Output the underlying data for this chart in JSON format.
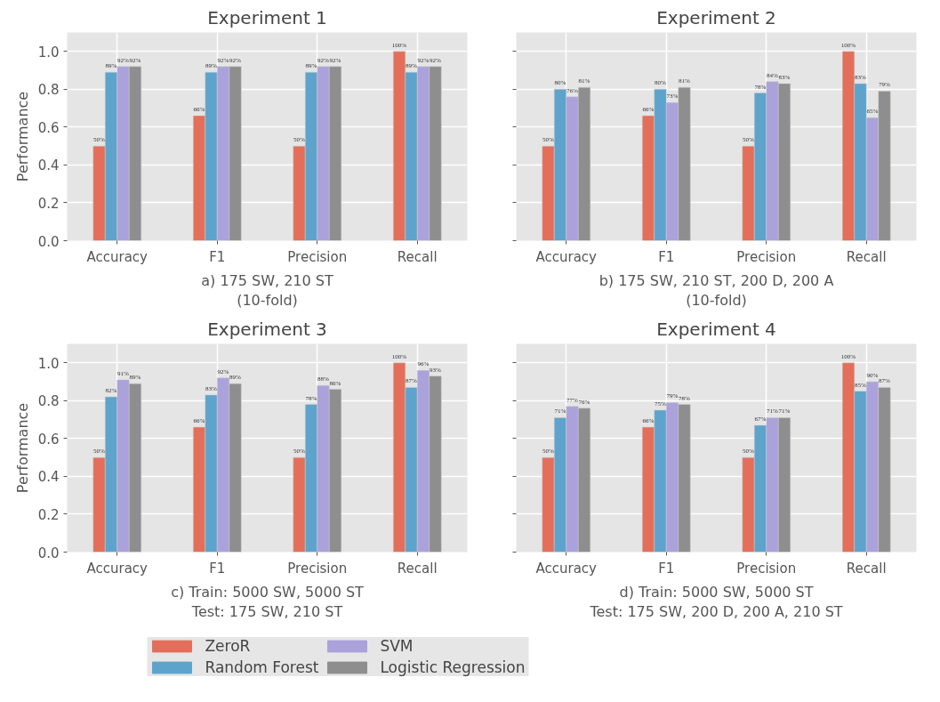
{
  "chart_data": [
    {
      "type": "bar",
      "title": "Experiment 1",
      "xlabel": "a) 175 SW, 210 ST\n(10-fold)",
      "ylabel": "Performance",
      "categories": [
        "Accuracy",
        "F1",
        "Precision",
        "Recall"
      ],
      "ylim": [
        0,
        1.1
      ],
      "yticks": [
        {
          "value": 0,
          "label": "0.0"
        },
        {
          "value": 0.2,
          "label": "0.2"
        },
        {
          "value": 0.4,
          "label": "0.4"
        },
        {
          "value": 0.6,
          "label": "0.6"
        },
        {
          "value": 0.8,
          "label": "0.8"
        },
        {
          "value": 1,
          "label": "1.0"
        }
      ],
      "grid": true,
      "series": [
        {
          "color": "#e36f5a",
          "values": [
            0.5,
            0.66,
            0.5,
            1.0
          ],
          "value_labels": [
            "50%",
            "66%",
            "50%",
            "100%"
          ]
        },
        {
          "color": "#5ea3cb",
          "values": [
            0.89,
            0.89,
            0.89,
            0.89
          ],
          "value_labels": [
            "89%",
            "89%",
            "89%",
            "89%"
          ]
        },
        {
          "color": "#aba2db",
          "values": [
            0.92,
            0.92,
            0.92,
            0.92
          ],
          "value_labels": [
            "92%",
            "92%",
            "92%",
            "92%"
          ]
        },
        {
          "color": "#8e8e8e",
          "values": [
            0.92,
            0.92,
            0.92,
            0.92
          ],
          "value_labels": [
            "92%",
            "92%",
            "92%",
            "92%"
          ]
        }
      ]
    },
    {
      "type": "bar",
      "title": "Experiment 2",
      "xlabel": "b) 175 SW, 210 ST, 200 D, 200 A\n(10-fold)",
      "categories": [
        "Accuracy",
        "F1",
        "Precision",
        "Recall"
      ],
      "ylim": [
        0,
        1.1
      ],
      "yticks": [
        0,
        0.2,
        0.4,
        0.6,
        0.8,
        1
      ],
      "grid": true,
      "tick_labels": "x",
      "series": [
        {
          "color": "#e36f5a",
          "values": [
            0.5,
            0.66,
            0.5,
            1.0
          ],
          "value_labels": [
            "50%",
            "66%",
            "50%",
            "100%"
          ]
        },
        {
          "color": "#5ea3cb",
          "values": [
            0.8,
            0.8,
            0.78,
            0.83
          ],
          "value_labels": [
            "80%",
            "80%",
            "78%",
            "83%"
          ]
        },
        {
          "color": "#aba2db",
          "values": [
            0.76,
            0.73,
            0.84,
            0.65
          ],
          "value_labels": [
            "76%",
            "73%",
            "84%",
            "65%"
          ]
        },
        {
          "color": "#8e8e8e",
          "values": [
            0.81,
            0.81,
            0.83,
            0.79
          ],
          "value_labels": [
            "81%",
            "81%",
            "83%",
            "79%"
          ]
        }
      ]
    },
    {
      "type": "bar",
      "title": "Experiment 3",
      "xlabel": "c) Train: 5000 SW, 5000 ST\nTest: 175 SW, 210 ST",
      "ylabel": "Performance",
      "categories": [
        "Accuracy",
        "F1",
        "Precision",
        "Recall"
      ],
      "ylim": [
        0,
        1.1
      ],
      "yticks": [
        {
          "value": 0,
          "label": "0.0"
        },
        {
          "value": 0.2,
          "label": "0.2"
        },
        {
          "value": 0.4,
          "label": "0.4"
        },
        {
          "value": 0.6,
          "label": "0.6"
        },
        {
          "value": 0.8,
          "label": "0.8"
        },
        {
          "value": 1,
          "label": "1.0"
        }
      ],
      "grid": true,
      "series": [
        {
          "color": "#e36f5a",
          "values": [
            0.5,
            0.66,
            0.5,
            1.0
          ],
          "value_labels": [
            "50%",
            "66%",
            "50%",
            "100%"
          ]
        },
        {
          "color": "#5ea3cb",
          "values": [
            0.82,
            0.83,
            0.78,
            0.87
          ],
          "value_labels": [
            "82%",
            "83%",
            "78%",
            "87%"
          ]
        },
        {
          "color": "#aba2db",
          "values": [
            0.91,
            0.92,
            0.88,
            0.96
          ],
          "value_labels": [
            "91%",
            "92%",
            "88%",
            "96%"
          ]
        },
        {
          "color": "#8e8e8e",
          "values": [
            0.89,
            0.89,
            0.86,
            0.93
          ],
          "value_labels": [
            "89%",
            "89%",
            "86%",
            "93%"
          ]
        }
      ]
    },
    {
      "type": "bar",
      "title": "Experiment 4",
      "xlabel": "d) Train: 5000 SW, 5000 ST\nTest: 175 SW, 200 D, 200 A, 210 ST",
      "categories": [
        "Accuracy",
        "F1",
        "Precision",
        "Recall"
      ],
      "ylim": [
        0,
        1.1
      ],
      "yticks": [
        0,
        0.2,
        0.4,
        0.6,
        0.8,
        1
      ],
      "grid": true,
      "tick_labels": "x",
      "legend": "bottom",
      "series": [
        {
          "name": "ZeroR",
          "color": "#e36f5a",
          "values": [
            0.5,
            0.66,
            0.5,
            1.0
          ],
          "value_labels": [
            "50%",
            "66%",
            "50%",
            "100%"
          ]
        },
        {
          "name": "Random Forest",
          "color": "#5ea3cb",
          "values": [
            0.71,
            0.75,
            0.67,
            0.85
          ],
          "value_labels": [
            "71%",
            "75%",
            "67%",
            "85%"
          ]
        },
        {
          "name": "SVM",
          "color": "#aba2db",
          "values": [
            0.77,
            0.79,
            0.71,
            0.9
          ],
          "value_labels": [
            "77%",
            "79%",
            "71%",
            "90%"
          ]
        },
        {
          "name": "Logistic Regression",
          "color": "#8e8e8e",
          "values": [
            0.76,
            0.78,
            0.71,
            0.87
          ],
          "value_labels": [
            "76%",
            "78%",
            "71%",
            "87%"
          ]
        }
      ]
    }
  ]
}
